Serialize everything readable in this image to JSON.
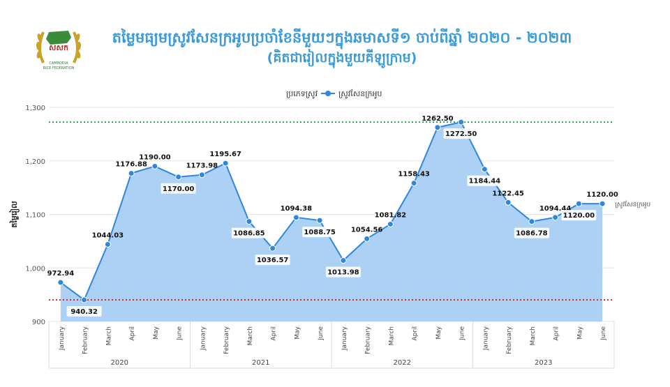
{
  "header": {
    "title": "តម្លៃមធ្យមស្រូវសែនក្រអូបប្រចាំខែនីមួយៗក្នុងឆមាសទី១ ចាប់ពីឆ្នាំ ២០២០ - ២០២៣",
    "subtitle": "(គិតជារៀលក្នុងមួយគីឡូក្រាម)",
    "logo_text": "សសក",
    "logo_caption_1": "CAMBODIA",
    "logo_caption_2": "RICE FEDERATION"
  },
  "colors": {
    "line": "#2e86de",
    "area": "#a9cff3",
    "title": "#3a9bd9",
    "max_line": "#1aa84f",
    "min_line": "#d62828",
    "logo_gold": "#c9a227",
    "logo_green": "#3a8b3a"
  },
  "chart_data": {
    "type": "area",
    "legend_title": "ប្រភេទស្រូវ",
    "legend_position": "top-center",
    "ylabel": "តម្លៃរៀល",
    "ylim": [
      900,
      1300
    ],
    "yticks": [
      "900",
      "1,000",
      "1,100",
      "1,200",
      "1,300"
    ],
    "grid": true,
    "years": [
      "2020",
      "2021",
      "2022",
      "2023"
    ],
    "categories": [
      "January",
      "February",
      "March",
      "April",
      "May",
      "June",
      "January",
      "February",
      "March",
      "April",
      "May",
      "June",
      "January",
      "February",
      "March",
      "April",
      "May",
      "June",
      "January",
      "February",
      "March",
      "April",
      "May",
      "June"
    ],
    "series": [
      {
        "name": "ស្រូវសែនក្រអូប",
        "end_label": "ស្រូវសែនក្រអូប",
        "values": [
          972.94,
          940.32,
          1044.03,
          1176.88,
          1190.0,
          1170.0,
          1173.98,
          1195.67,
          1086.85,
          1036.57,
          1094.38,
          1088.75,
          1013.98,
          1054.56,
          1081.82,
          1158.43,
          1262.5,
          1272.5,
          1184.44,
          1122.45,
          1086.78,
          1094.44,
          1120.0,
          1120.0
        ],
        "labels": [
          "972.94",
          "940.32",
          "1044.03",
          "1176.88",
          "1190.00",
          "1170.00",
          "1173.98",
          "1195.67",
          "1086.85",
          "1036.57",
          "1094.38",
          "1088.75",
          "1013.98",
          "1054.56",
          "1081.82",
          "1158.43",
          "1262.50",
          "1272.50",
          "1184.44",
          "1122.45",
          "1086.78",
          "1094.44",
          "1120.00",
          "1120.00"
        ]
      }
    ],
    "reference_lines": [
      {
        "value": 1272.5,
        "role": "max"
      },
      {
        "value": 940.32,
        "role": "min"
      }
    ]
  }
}
